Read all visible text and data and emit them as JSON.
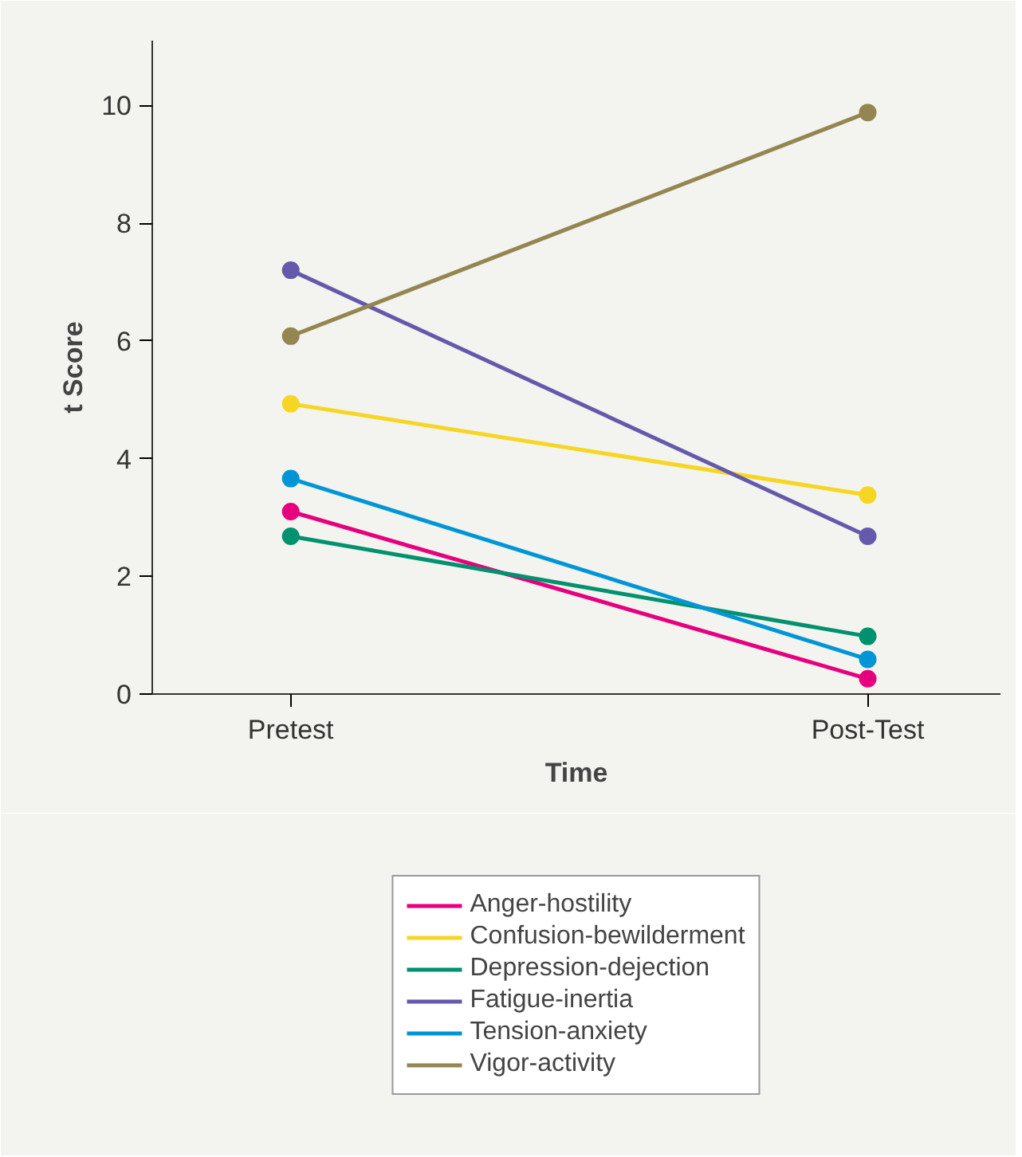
{
  "chart_data": {
    "type": "line",
    "xlabel": "Time",
    "ylabel": "t Score",
    "categories": [
      "Pretest",
      "Post-Test"
    ],
    "ylim": [
      0,
      11.1
    ],
    "yticks": [
      0,
      2,
      4,
      6,
      8,
      10
    ],
    "grid": false,
    "legend": "bottom",
    "marker": "circle",
    "line_style": "solid",
    "series": [
      {
        "name": "Anger-hostility",
        "color": "#e6007e",
        "values": [
          3.1,
          0.26
        ]
      },
      {
        "name": "Confusion-bewilderment",
        "color": "#f7d623",
        "values": [
          4.93,
          3.38
        ]
      },
      {
        "name": "Depression-dejection",
        "color": "#00916e",
        "values": [
          2.68,
          0.98
        ]
      },
      {
        "name": "Fatigue-inertia",
        "color": "#6459aa",
        "values": [
          7.2,
          2.68
        ]
      },
      {
        "name": "Tension-anxiety",
        "color": "#0096d6",
        "values": [
          3.66,
          0.59
        ]
      },
      {
        "name": "Vigor-activity",
        "color": "#938651",
        "values": [
          6.08,
          9.88
        ]
      }
    ]
  }
}
